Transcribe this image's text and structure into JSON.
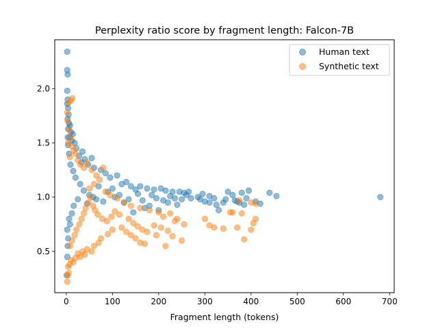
{
  "chart_data": {
    "type": "scatter",
    "title": "Perplexity ratio score by fragment length: Falcon-7B",
    "xlabel": "Fragment length (tokens)",
    "ylabel": "",
    "xlim": [
      -25,
      710
    ],
    "ylim": [
      0.12,
      2.45
    ],
    "xticks": [
      0,
      100,
      200,
      300,
      400,
      500,
      600,
      700
    ],
    "yticks": [
      0.5,
      1.0,
      1.5,
      2.0
    ],
    "xtick_labels": [
      "0",
      "100",
      "200",
      "300",
      "400",
      "500",
      "600",
      "700"
    ],
    "ytick_labels": [
      "0.5",
      "1.0",
      "1.5",
      "2.0"
    ],
    "grid": false,
    "legend_position": "top-right",
    "series": [
      {
        "name": "Human text",
        "color": "#1f77b4",
        "alpha": 0.5,
        "points": [
          [
            2,
            2.34
          ],
          [
            2,
            2.17
          ],
          [
            3,
            2.13
          ],
          [
            2,
            1.98
          ],
          [
            3,
            1.9
          ],
          [
            2,
            1.86
          ],
          [
            4,
            1.82
          ],
          [
            5,
            1.76
          ],
          [
            3,
            1.72
          ],
          [
            6,
            1.68
          ],
          [
            8,
            1.66
          ],
          [
            4,
            1.63
          ],
          [
            10,
            1.6
          ],
          [
            14,
            1.58
          ],
          [
            7,
            1.55
          ],
          [
            12,
            1.52
          ],
          [
            18,
            1.5
          ],
          [
            22,
            1.45
          ],
          [
            35,
            1.42
          ],
          [
            28,
            1.38
          ],
          [
            40,
            1.35
          ],
          [
            55,
            1.36
          ],
          [
            33,
            1.32
          ],
          [
            47,
            1.3
          ],
          [
            60,
            1.27
          ],
          [
            75,
            1.25
          ],
          [
            85,
            1.22
          ],
          [
            110,
            1.2
          ],
          [
            95,
            1.18
          ],
          [
            130,
            1.14
          ],
          [
            120,
            1.12
          ],
          [
            140,
            1.1
          ],
          [
            160,
            1.1
          ],
          [
            150,
            1.07
          ],
          [
            175,
            1.08
          ],
          [
            190,
            1.07
          ],
          [
            205,
            1.08
          ],
          [
            215,
            1.06
          ],
          [
            230,
            1.05
          ],
          [
            245,
            1.05
          ],
          [
            255,
            1.04
          ],
          [
            265,
            1.05
          ],
          [
            285,
            1.0
          ],
          [
            290,
            0.98
          ],
          [
            295,
            1.03
          ],
          [
            300,
            0.96
          ],
          [
            310,
            1.01
          ],
          [
            320,
            0.99
          ],
          [
            325,
            0.93
          ],
          [
            330,
            0.88
          ],
          [
            340,
            0.95
          ],
          [
            350,
            1.05
          ],
          [
            360,
            1.02
          ],
          [
            365,
            0.97
          ],
          [
            375,
            0.95
          ],
          [
            380,
            1.04
          ],
          [
            385,
            0.93
          ],
          [
            390,
            0.99
          ],
          [
            395,
            1.06
          ],
          [
            410,
            0.96
          ],
          [
            420,
            0.94
          ],
          [
            440,
            1.04
          ],
          [
            455,
            1.01
          ],
          [
            680,
            1.0
          ],
          [
            180,
            0.92
          ],
          [
            200,
            0.88
          ],
          [
            220,
            0.95
          ],
          [
            240,
            0.93
          ],
          [
            170,
            0.9
          ],
          [
            145,
            0.86
          ],
          [
            125,
            0.95
          ],
          [
            105,
            1.0
          ],
          [
            90,
            1.05
          ],
          [
            70,
            1.1
          ],
          [
            65,
            0.98
          ],
          [
            50,
            1.02
          ],
          [
            30,
            1.12
          ],
          [
            20,
            1.18
          ],
          [
            15,
            1.24
          ],
          [
            9,
            1.3
          ],
          [
            6,
            1.4
          ],
          [
            4,
            1.48
          ],
          [
            3,
            1.55
          ],
          [
            2,
            0.45
          ],
          [
            3,
            0.55
          ],
          [
            1,
            0.28
          ],
          [
            4,
            0.62
          ],
          [
            2,
            0.7
          ],
          [
            6,
            0.8
          ],
          [
            8,
            0.75
          ],
          [
            12,
            0.85
          ],
          [
            16,
            0.92
          ],
          [
            25,
            0.98
          ],
          [
            38,
            1.06
          ],
          [
            45,
            0.94
          ],
          [
            58,
            1.0
          ],
          [
            80,
            0.96
          ],
          [
            100,
            1.08
          ],
          [
            115,
            1.02
          ],
          [
            135,
            0.98
          ],
          [
            155,
            1.03
          ],
          [
            165,
            0.97
          ],
          [
            185,
            1.02
          ],
          [
            195,
            0.99
          ],
          [
            210,
            0.97
          ],
          [
            225,
            1.01
          ],
          [
            235,
            0.99
          ],
          [
            250,
            0.98
          ],
          [
            260,
            1.02
          ],
          [
            270,
            0.99
          ],
          [
            310,
            0.95
          ],
          [
            345,
            0.98
          ],
          [
            370,
            0.96
          ]
        ]
      },
      {
        "name": "Synthetic text",
        "color": "#ff7f0e",
        "alpha": 0.5,
        "points": [
          [
            13,
            1.91
          ],
          [
            10,
            1.89
          ],
          [
            5,
            1.87
          ],
          [
            2,
            1.78
          ],
          [
            3,
            1.7
          ],
          [
            6,
            1.62
          ],
          [
            9,
            1.55
          ],
          [
            4,
            1.5
          ],
          [
            12,
            1.47
          ],
          [
            16,
            1.43
          ],
          [
            20,
            1.4
          ],
          [
            8,
            1.37
          ],
          [
            25,
            1.34
          ],
          [
            30,
            1.3
          ],
          [
            45,
            1.32
          ],
          [
            38,
            1.27
          ],
          [
            55,
            1.25
          ],
          [
            65,
            1.2
          ],
          [
            72,
            1.16
          ],
          [
            80,
            1.27
          ],
          [
            60,
            1.12
          ],
          [
            50,
            1.08
          ],
          [
            85,
            1.05
          ],
          [
            95,
            1.02
          ],
          [
            110,
            0.99
          ],
          [
            125,
            0.95
          ],
          [
            140,
            0.92
          ],
          [
            160,
            0.9
          ],
          [
            180,
            0.88
          ],
          [
            200,
            0.86
          ],
          [
            210,
            0.82
          ],
          [
            225,
            0.85
          ],
          [
            240,
            0.8
          ],
          [
            255,
            0.75
          ],
          [
            300,
            0.8
          ],
          [
            310,
            0.74
          ],
          [
            320,
            0.72
          ],
          [
            340,
            0.71
          ],
          [
            355,
            0.86
          ],
          [
            360,
            0.86
          ],
          [
            370,
            0.72
          ],
          [
            380,
            0.85
          ],
          [
            385,
            0.61
          ],
          [
            400,
            0.7
          ],
          [
            405,
            0.76
          ],
          [
            410,
            0.8
          ],
          [
            400,
            0.95
          ],
          [
            410,
            0.94
          ],
          [
            375,
            0.97
          ],
          [
            250,
            0.6
          ],
          [
            215,
            0.55
          ],
          [
            170,
            0.57
          ],
          [
            160,
            0.58
          ],
          [
            150,
            0.62
          ],
          [
            140,
            0.65
          ],
          [
            130,
            0.68
          ],
          [
            120,
            0.72
          ],
          [
            100,
            0.7
          ],
          [
            90,
            0.66
          ],
          [
            75,
            0.62
          ],
          [
            70,
            0.58
          ],
          [
            60,
            0.55
          ],
          [
            55,
            0.5
          ],
          [
            45,
            0.52
          ],
          [
            40,
            0.47
          ],
          [
            35,
            0.5
          ],
          [
            30,
            0.45
          ],
          [
            25,
            0.48
          ],
          [
            20,
            0.44
          ],
          [
            15,
            0.4
          ],
          [
            10,
            0.42
          ],
          [
            7,
            0.38
          ],
          [
            4,
            0.36
          ],
          [
            3,
            0.28
          ],
          [
            2,
            0.22
          ],
          [
            5,
            0.3
          ],
          [
            8,
            0.55
          ],
          [
            12,
            0.6
          ],
          [
            18,
            0.65
          ],
          [
            22,
            0.7
          ],
          [
            28,
            0.75
          ],
          [
            33,
            0.8
          ],
          [
            38,
            0.85
          ],
          [
            42,
            0.9
          ],
          [
            48,
            0.95
          ],
          [
            52,
            1.0
          ],
          [
            58,
            0.92
          ],
          [
            62,
            0.88
          ],
          [
            68,
            0.84
          ],
          [
            78,
            0.8
          ],
          [
            88,
            0.78
          ],
          [
            98,
            0.82
          ],
          [
            105,
            0.87
          ],
          [
            115,
            0.84
          ],
          [
            135,
            0.8
          ],
          [
            145,
            0.76
          ],
          [
            155,
            0.73
          ],
          [
            165,
            0.7
          ],
          [
            175,
            0.68
          ],
          [
            190,
            0.74
          ],
          [
            195,
            0.65
          ],
          [
            205,
            0.72
          ],
          [
            220,
            0.69
          ],
          [
            230,
            0.64
          ],
          [
            235,
            0.78
          ]
        ]
      }
    ]
  }
}
